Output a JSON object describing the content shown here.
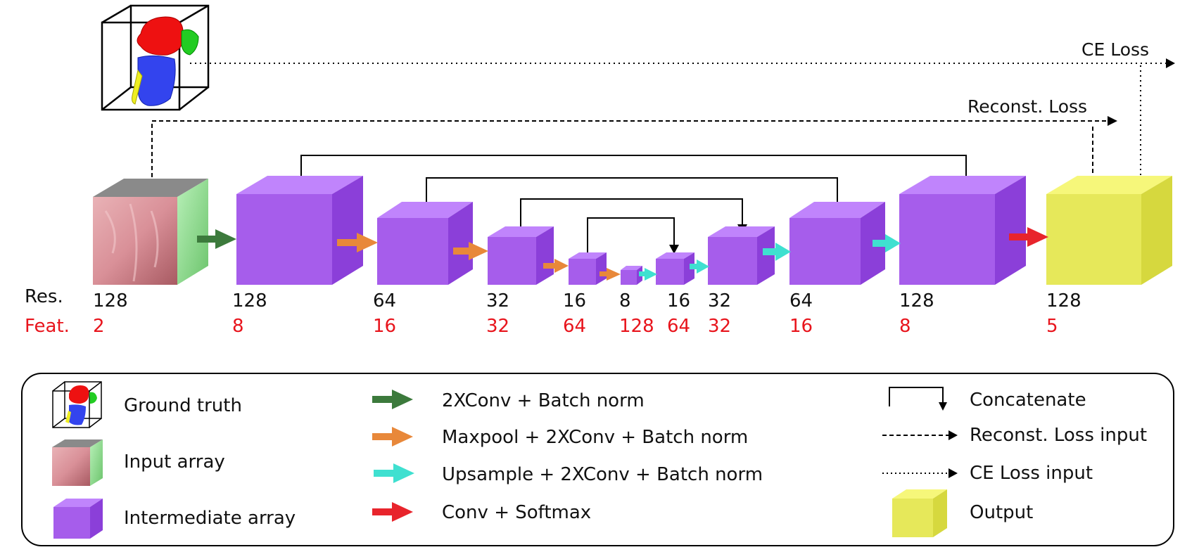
{
  "losses": {
    "ce_loss": "CE Loss",
    "reconst_loss": "Reconst. Loss"
  },
  "row_labels": {
    "res": "Res.",
    "feat": "Feat."
  },
  "blocks": [
    {
      "res": "128",
      "feat": "2",
      "kind": "input"
    },
    {
      "res": "128",
      "feat": "8",
      "kind": "intermediate"
    },
    {
      "res": "64",
      "feat": "16",
      "kind": "intermediate"
    },
    {
      "res": "32",
      "feat": "32",
      "kind": "intermediate"
    },
    {
      "res": "16",
      "feat": "64",
      "kind": "intermediate"
    },
    {
      "res": "8",
      "feat": "128",
      "kind": "intermediate"
    },
    {
      "res": "16",
      "feat": "64",
      "kind": "intermediate"
    },
    {
      "res": "32",
      "feat": "32",
      "kind": "intermediate"
    },
    {
      "res": "64",
      "feat": "16",
      "kind": "intermediate"
    },
    {
      "res": "128",
      "feat": "8",
      "kind": "intermediate"
    },
    {
      "res": "128",
      "feat": "5",
      "kind": "output"
    }
  ],
  "legend": {
    "ground_truth": "Ground truth",
    "input_array": "Input array",
    "intermediate_array": "Intermediate array",
    "conv_bn": "2XConv + Batch norm",
    "maxpool": "Maxpool + 2XConv + Batch norm",
    "upsample": "Upsample + 2XConv + Batch norm",
    "conv_softmax": "Conv + Softmax",
    "concatenate": "Concatenate",
    "reconst_input": "Reconst. Loss input",
    "ce_input": "CE Loss input",
    "output": "Output"
  },
  "colors": {
    "intermediate_front": "#a65deb",
    "intermediate_top": "#c084fc",
    "intermediate_side": "#8b3fd9",
    "output_front": "#e6e85a",
    "output_top": "#f6f77a",
    "output_side": "#d6d83e",
    "arrow_green": "#3c7a3c",
    "arrow_orange": "#e8883a",
    "arrow_cyan": "#3fe0d0",
    "arrow_red": "#e8242c",
    "ground_truth_red": "#ee1111",
    "ground_truth_blue": "#3344ee",
    "ground_truth_green": "#22cc22",
    "ground_truth_yellow": "#eeee22"
  }
}
